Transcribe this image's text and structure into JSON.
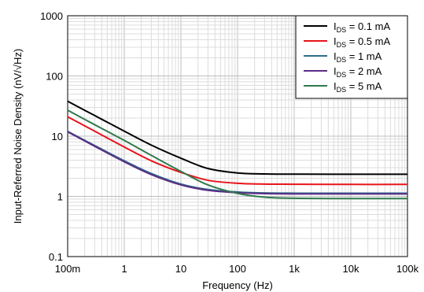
{
  "chart_data": {
    "type": "line",
    "xlabel": "Frequency (Hz)",
    "ylabel": "Input-Referred Noise Density (nV/√Hz)",
    "xscale": "log",
    "yscale": "log",
    "xlim": [
      0.1,
      100000
    ],
    "ylim": [
      0.1,
      1000
    ],
    "grid": true,
    "legend_position": "top-right",
    "x_ticks": [
      0.1,
      1,
      10,
      100,
      1000,
      10000,
      100000
    ],
    "x_tick_labels": [
      "100m",
      "1",
      "10",
      "100",
      "1k",
      "10k",
      "100k"
    ],
    "y_ticks": [
      0.1,
      1,
      10,
      100,
      1000
    ],
    "y_tick_labels": [
      "0.1",
      "1",
      "10",
      "100",
      "1000"
    ],
    "series": [
      {
        "name_main": "I",
        "name_sub": "DS",
        "name_rest": " = 0.1 mA",
        "color": "#000000",
        "x": [
          0.1,
          0.3,
          1,
          3,
          10,
          30,
          100,
          300,
          1000,
          10000,
          100000
        ],
        "y": [
          38,
          22,
          12.1,
          7.1,
          4.3,
          2.9,
          2.45,
          2.36,
          2.34,
          2.33,
          2.33
        ]
      },
      {
        "name_main": "I",
        "name_sub": "DS",
        "name_rest": " = 0.5 mA",
        "color": "#e8141b",
        "x": [
          0.1,
          0.3,
          1,
          3,
          10,
          30,
          100,
          300,
          1000,
          10000,
          100000
        ],
        "y": [
          21,
          12.1,
          6.6,
          3.9,
          2.5,
          1.85,
          1.65,
          1.6,
          1.59,
          1.58,
          1.58
        ]
      },
      {
        "name_main": "I",
        "name_sub": "DS",
        "name_rest": " = 1 mA",
        "color": "#2e6b8a",
        "x": [
          0.1,
          0.3,
          1,
          3,
          10,
          30,
          100,
          300,
          1000,
          10000,
          100000
        ],
        "y": [
          12,
          7,
          3.9,
          2.4,
          1.6,
          1.3,
          1.18,
          1.14,
          1.13,
          1.13,
          1.13
        ]
      },
      {
        "name_main": "I",
        "name_sub": "DS",
        "name_rest": " = 2 mA",
        "color": "#5b2c86",
        "x": [
          0.1,
          0.3,
          1,
          3,
          10,
          30,
          100,
          300,
          1000,
          10000,
          100000
        ],
        "y": [
          11.8,
          6.8,
          3.75,
          2.3,
          1.55,
          1.26,
          1.15,
          1.11,
          1.1,
          1.1,
          1.1
        ]
      },
      {
        "name_main": "I",
        "name_sub": "DS",
        "name_rest": " = 5 mA",
        "color": "#2f7a4d",
        "x": [
          0.1,
          0.3,
          1,
          3,
          10,
          30,
          100,
          300,
          1000,
          10000,
          100000
        ],
        "y": [
          27,
          15.5,
          8.5,
          4.8,
          2.6,
          1.55,
          1.12,
          0.97,
          0.93,
          0.92,
          0.92
        ]
      }
    ]
  }
}
